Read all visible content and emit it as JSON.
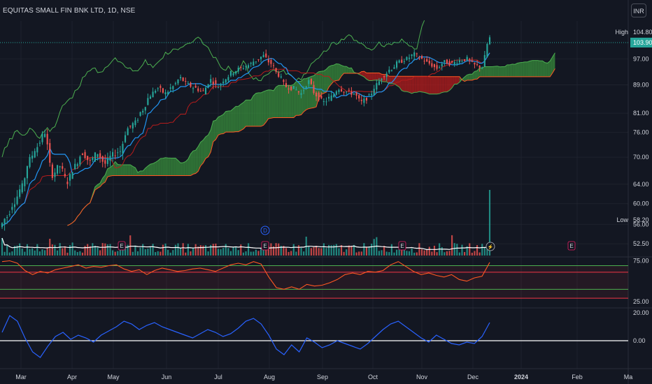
{
  "symbol": {
    "title": "EQUITAS SMALL FIN BNK LTD, 1D, NSE",
    "currency": "INR"
  },
  "colors": {
    "background": "#131722",
    "grid": "#1e222d",
    "up": "#26a69a",
    "down": "#ef5350",
    "conversion": "#2196f3",
    "base": "#b71c1c",
    "lagging": "#4caf50",
    "cloud_bull": "#388e3c",
    "cloud_bear": "#b71c1c",
    "rsi": "#ff5722",
    "band_green": "#4caf50",
    "band_red": "#f23645",
    "osc": "#2962ff",
    "zero": "#ffffff",
    "vol_ma": "#ffffff"
  },
  "chart_data": [
    {
      "type": "candlestick",
      "title": "EQUITAS SMALL FIN BNK LTD, 1D, NSE",
      "y_ticks": [
        "97.00",
        "89.00",
        "81.00",
        "76.00",
        "70.00",
        "64.00",
        "60.00",
        "56.00",
        "52.50"
      ],
      "ylim": [
        50.5,
        108
      ],
      "scale": "log",
      "markers": [
        {
          "label": "High",
          "value": "104.80"
        },
        {
          "label": "",
          "value": "103.90"
        },
        {
          "label": "Low",
          "value": "58.20"
        }
      ],
      "indicators": [
        "ichimoku",
        "volume"
      ],
      "events": [
        "D",
        "E",
        "E",
        "E",
        "E"
      ],
      "series": [
        {
          "name": "",
          "closes": [
            57.5,
            60.5,
            63.5,
            69.5,
            72.5,
            76.0,
            66.0,
            68.0,
            64.5,
            68.0,
            71.0,
            69.0,
            71.0,
            68.5,
            70.5,
            71.5,
            77.0,
            78.5,
            82.0,
            86.0,
            88.0,
            86.5,
            88.5,
            91.0,
            89.0,
            88.0,
            87.0,
            90.5,
            88.5,
            91.0,
            93.0,
            94.0,
            95.0,
            96.5,
            98.0,
            95.5,
            92.0,
            88.5,
            88.0,
            86.5,
            90.0,
            86.0,
            84.0,
            85.5,
            88.0,
            87.0,
            86.5,
            84.0,
            85.5,
            89.0,
            92.0,
            94.0,
            96.0,
            97.0,
            98.5,
            97.0,
            95.5,
            94.0,
            96.0,
            95.5,
            96.5,
            97.0,
            95.0,
            94.5,
            104.0
          ]
        }
      ]
    },
    {
      "type": "line",
      "title": "",
      "y_ticks": [
        "75.00",
        "25.00"
      ],
      "ylim": [
        18,
        78
      ],
      "bands": [
        69,
        61,
        40,
        29
      ],
      "series": [
        {
          "name": "",
          "values": [
            74,
            75,
            72,
            63,
            58,
            62,
            60,
            64,
            66,
            68,
            70,
            66,
            68,
            67,
            69,
            70,
            65,
            62,
            64,
            58,
            63,
            66,
            64,
            62,
            63,
            65,
            66,
            64,
            62,
            66,
            70,
            72,
            70,
            74,
            71,
            55,
            42,
            40,
            43,
            40,
            46,
            44,
            45,
            48,
            52,
            58,
            60,
            58,
            62,
            61,
            63,
            70,
            74,
            68,
            62,
            58,
            60,
            57,
            55,
            58,
            52,
            50,
            54,
            56,
            73
          ]
        }
      ]
    },
    {
      "type": "line",
      "title": "",
      "y_ticks": [
        "20.00",
        "0.00"
      ],
      "ylim": [
        -16,
        23
      ],
      "series": [
        {
          "name": "",
          "values": [
            6,
            18,
            14,
            2,
            -8,
            -12,
            -4,
            3,
            6,
            1,
            4,
            2,
            -1,
            4,
            7,
            10,
            14,
            12,
            8,
            11,
            13,
            10,
            8,
            6,
            4,
            2,
            5,
            8,
            6,
            3,
            5,
            9,
            14,
            16,
            12,
            4,
            -6,
            -10,
            -3,
            -8,
            2,
            -1,
            -5,
            -3,
            0,
            -2,
            -4,
            -6,
            -2,
            3,
            8,
            12,
            14,
            10,
            6,
            2,
            -1,
            4,
            1,
            -2,
            -3,
            -1,
            -2,
            3,
            13
          ]
        }
      ]
    }
  ],
  "time_axis": [
    "Mar",
    "Apr",
    "May",
    "Jun",
    "Jul",
    "Aug",
    "Sep",
    "Oct",
    "Nov",
    "Dec",
    "2024",
    "Feb",
    "Ma"
  ]
}
